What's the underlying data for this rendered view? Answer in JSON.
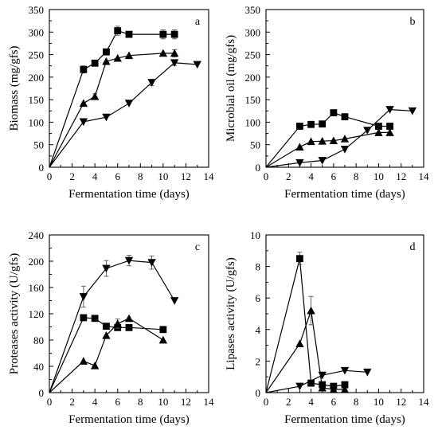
{
  "chart_data": [
    {
      "type": "line",
      "panel_label": "a",
      "xlabel": "Fermentation time (days)",
      "ylabel": "Biomass (mg/gfs)",
      "xlim": [
        0,
        14
      ],
      "ylim": [
        0,
        350
      ],
      "xticks": [
        0,
        2,
        4,
        6,
        8,
        10,
        12,
        14
      ],
      "yticks": [
        50,
        100,
        150,
        200,
        250,
        300,
        350
      ],
      "grid": false,
      "legend": "none",
      "series": [
        {
          "marker": "square",
          "points": [
            [
              0,
              0
            ],
            [
              3,
              217
            ],
            [
              4,
              231
            ],
            [
              5,
              256
            ],
            [
              6,
              303
            ],
            [
              7,
              295
            ],
            [
              10,
              295
            ],
            [
              11,
              295
            ]
          ],
          "errors": [
            0,
            8,
            6,
            6,
            10,
            0,
            10,
            10
          ]
        },
        {
          "marker": "triangle-up",
          "points": [
            [
              0,
              0
            ],
            [
              3,
              142
            ],
            [
              4,
              157
            ],
            [
              5,
              235
            ],
            [
              6,
              242
            ],
            [
              7,
              248
            ],
            [
              10,
              253
            ],
            [
              11,
              253
            ]
          ],
          "errors": [
            0,
            0,
            6,
            0,
            0,
            0,
            0,
            8
          ]
        },
        {
          "marker": "triangle-down",
          "points": [
            [
              0,
              0
            ],
            [
              3,
              101
            ],
            [
              5,
              111
            ],
            [
              7,
              142
            ],
            [
              9,
              188
            ],
            [
              11,
              232
            ],
            [
              13,
              228
            ]
          ],
          "errors": [
            0,
            0,
            0,
            0,
            7,
            6,
            0
          ]
        }
      ]
    },
    {
      "type": "line",
      "panel_label": "b",
      "xlabel": "Fermentation time (days)",
      "ylabel": "Microbial oil (mg/gfs)",
      "xlim": [
        0,
        14
      ],
      "ylim": [
        0,
        350
      ],
      "xticks": [
        0,
        2,
        4,
        6,
        8,
        10,
        12,
        14
      ],
      "yticks": [
        50,
        100,
        150,
        200,
        250,
        300,
        350
      ],
      "grid": false,
      "legend": "none",
      "series": [
        {
          "marker": "square",
          "points": [
            [
              0,
              0
            ],
            [
              3,
              91
            ],
            [
              4,
              95
            ],
            [
              5,
              96
            ],
            [
              6,
              121
            ],
            [
              7,
              112
            ],
            [
              10,
              91
            ],
            [
              11,
              91
            ]
          ],
          "errors": [
            0,
            0,
            0,
            0,
            0,
            0,
            0,
            0
          ]
        },
        {
          "marker": "triangle-up",
          "points": [
            [
              0,
              0
            ],
            [
              3,
              45
            ],
            [
              4,
              57
            ],
            [
              5,
              58
            ],
            [
              6,
              59
            ],
            [
              7,
              63
            ],
            [
              10,
              77
            ],
            [
              11,
              77
            ]
          ],
          "errors": [
            0,
            0,
            0,
            0,
            0,
            0,
            0,
            0
          ]
        },
        {
          "marker": "triangle-down",
          "points": [
            [
              0,
              0
            ],
            [
              3,
              10
            ],
            [
              5,
              15
            ],
            [
              7,
              40
            ],
            [
              9,
              82
            ],
            [
              11,
              128
            ],
            [
              13,
              125
            ]
          ],
          "errors": [
            0,
            0,
            0,
            0,
            0,
            0,
            0
          ]
        }
      ]
    },
    {
      "type": "line",
      "panel_label": "c",
      "xlabel": "Fermentation time (days)",
      "ylabel": "Proteases activity (U/gfs)",
      "xlim": [
        0,
        14
      ],
      "ylim": [
        0,
        240
      ],
      "xticks": [
        0,
        2,
        4,
        6,
        8,
        10,
        12,
        14
      ],
      "yticks": [
        40,
        80,
        120,
        160,
        200,
        240
      ],
      "grid": false,
      "legend": "none",
      "series": [
        {
          "marker": "square",
          "points": [
            [
              0,
              0
            ],
            [
              3,
              114
            ],
            [
              4,
              113
            ],
            [
              5,
              101
            ],
            [
              6,
              99
            ],
            [
              7,
              99
            ],
            [
              10,
              96
            ]
          ],
          "errors": [
            0,
            0,
            0,
            0,
            0,
            0,
            0
          ]
        },
        {
          "marker": "triangle-up",
          "points": [
            [
              0,
              0
            ],
            [
              3,
              48
            ],
            [
              4,
              41
            ],
            [
              5,
              87
            ],
            [
              6,
              105
            ],
            [
              7,
              113
            ],
            [
              10,
              80
            ]
          ],
          "errors": [
            0,
            0,
            0,
            0,
            7,
            0,
            0
          ]
        },
        {
          "marker": "triangle-down",
          "points": [
            [
              0,
              0
            ],
            [
              3,
              146
            ],
            [
              5,
              189
            ],
            [
              7,
              201
            ],
            [
              9,
              198
            ],
            [
              11,
              140
            ]
          ],
          "errors": [
            0,
            16,
            12,
            8,
            10,
            0
          ]
        }
      ]
    },
    {
      "type": "line",
      "panel_label": "d",
      "xlabel": "Fermentation time (days)",
      "ylabel": "Lipases activity (U/gfs)",
      "xlim": [
        0,
        14
      ],
      "ylim": [
        0,
        10
      ],
      "xticks": [
        0,
        2,
        4,
        6,
        8,
        10,
        12,
        14
      ],
      "yticks": [
        2,
        4,
        6,
        8,
        10
      ],
      "grid": false,
      "legend": "none",
      "series": [
        {
          "marker": "square",
          "points": [
            [
              0,
              0
            ],
            [
              3,
              8.5
            ],
            [
              4,
              0.6
            ],
            [
              5,
              0.5
            ],
            [
              6,
              0.4
            ],
            [
              7,
              0.5
            ]
          ],
          "errors": [
            0,
            0.4,
            0,
            0,
            0,
            0
          ]
        },
        {
          "marker": "triangle-up",
          "points": [
            [
              0,
              0
            ],
            [
              3,
              3.1
            ],
            [
              4,
              5.2
            ],
            [
              5,
              0.3
            ],
            [
              6,
              0.2
            ],
            [
              7,
              0.2
            ]
          ],
          "errors": [
            0,
            0,
            0.9,
            0,
            0,
            0
          ]
        },
        {
          "marker": "triangle-down",
          "points": [
            [
              0,
              0
            ],
            [
              3,
              0.4
            ],
            [
              5,
              1.1
            ],
            [
              7,
              1.4
            ],
            [
              9,
              1.3
            ]
          ],
          "errors": [
            0,
            0,
            0,
            0,
            0
          ]
        }
      ]
    }
  ]
}
